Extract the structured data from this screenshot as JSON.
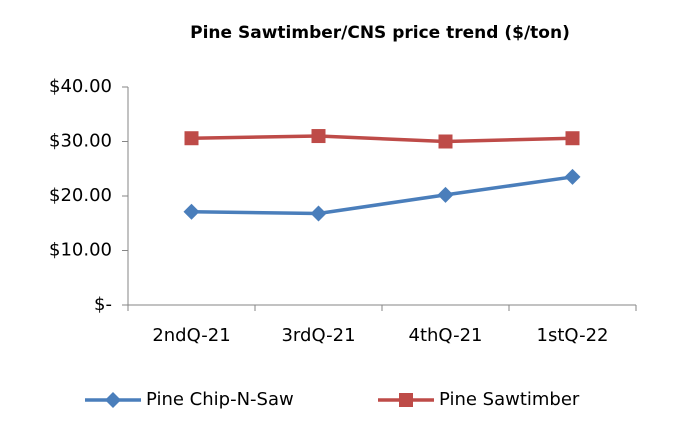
{
  "chart_data": {
    "type": "line",
    "title": "Pine Sawtimber/CNS price trend ($/ton)",
    "categories": [
      "2ndQ-21",
      "3rdQ-21",
      "4thQ-21",
      "1stQ-22"
    ],
    "series": [
      {
        "name": "Pine Chip-N-Saw",
        "color": "#4a7ebb",
        "marker": "diamond",
        "values": [
          17.1,
          16.8,
          20.2,
          23.5
        ]
      },
      {
        "name": "Pine Sawtimber",
        "color": "#be4b48",
        "marker": "square",
        "values": [
          30.6,
          31.0,
          30.0,
          30.6
        ]
      }
    ],
    "ylim": [
      0,
      40
    ],
    "yticks": [
      {
        "value": 0,
        "label": "$-"
      },
      {
        "value": 10,
        "label": "$10.00"
      },
      {
        "value": 20,
        "label": "$20.00"
      },
      {
        "value": 30,
        "label": "$30.00"
      },
      {
        "value": 40,
        "label": "$40.00"
      }
    ],
    "grid": false,
    "legend": "bottom"
  }
}
